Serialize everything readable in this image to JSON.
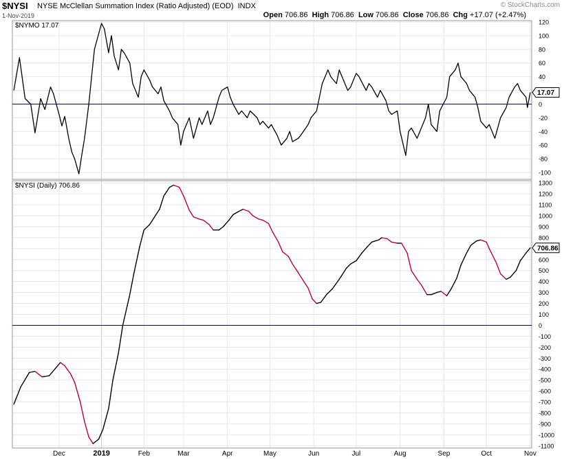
{
  "header": {
    "symbol": "$NYSI",
    "name": "NYSE McClellan Summation Index (Ratio Adjusted) (EOD)",
    "exchange": "INDX",
    "date": "1-Nov-2019",
    "watermark": "© StockCharts.com",
    "open_label": "Open",
    "open": "706.86",
    "high_label": "High",
    "high": "706.86",
    "low_label": "Low",
    "low": "706.86",
    "close_label": "Close",
    "close": "706.86",
    "chg_label": "Chg",
    "chg": "+17.07 (+2.47%)"
  },
  "chart_data": [
    {
      "type": "line",
      "label": "$NYMO 17.07",
      "last_value": "17.07",
      "ylim": [
        -110,
        122
      ],
      "yticks": [
        -100,
        -80,
        -60,
        -40,
        -20,
        0,
        20,
        40,
        60,
        80,
        100,
        120
      ],
      "reference_line": 0,
      "colors": {
        "line": "#000000",
        "zero": "#000080"
      },
      "series": [
        {
          "points": [
            [
              "2018-11-01",
              20
            ],
            [
              "2018-11-05",
              68
            ],
            [
              "2018-11-09",
              8
            ],
            [
              "2018-11-13",
              0
            ],
            [
              "2018-11-16",
              -42
            ],
            [
              "2018-11-20",
              8
            ],
            [
              "2018-11-23",
              -8
            ],
            [
              "2018-11-27",
              25
            ],
            [
              "2018-11-29",
              15
            ],
            [
              "2018-12-03",
              -15
            ],
            [
              "2018-12-05",
              -32
            ],
            [
              "2018-12-07",
              -18
            ],
            [
              "2018-12-10",
              -52
            ],
            [
              "2018-12-12",
              -70
            ],
            [
              "2018-12-14",
              -80
            ],
            [
              "2018-12-17",
              -102
            ],
            [
              "2018-12-19",
              -75
            ],
            [
              "2018-12-21",
              -50
            ],
            [
              "2018-12-24",
              0
            ],
            [
              "2018-12-26",
              40
            ],
            [
              "2018-12-28",
              80
            ],
            [
              "2019-01-02",
              118
            ],
            [
              "2019-01-04",
              110
            ],
            [
              "2019-01-07",
              75
            ],
            [
              "2019-01-09",
              100
            ],
            [
              "2019-01-11",
              70
            ],
            [
              "2019-01-14",
              50
            ],
            [
              "2019-01-16",
              80
            ],
            [
              "2019-01-18",
              75
            ],
            [
              "2019-01-22",
              60
            ],
            [
              "2019-01-24",
              30
            ],
            [
              "2019-01-28",
              10
            ],
            [
              "2019-01-30",
              40
            ],
            [
              "2019-02-01",
              50
            ],
            [
              "2019-02-05",
              35
            ],
            [
              "2019-02-07",
              25
            ],
            [
              "2019-02-11",
              15
            ],
            [
              "2019-02-13",
              25
            ],
            [
              "2019-02-15",
              5
            ],
            [
              "2019-02-19",
              -10
            ],
            [
              "2019-02-21",
              -20
            ],
            [
              "2019-02-25",
              -30
            ],
            [
              "2019-02-27",
              -60
            ],
            [
              "2019-03-01",
              -40
            ],
            [
              "2019-03-05",
              -20
            ],
            [
              "2019-03-08",
              -50
            ],
            [
              "2019-03-12",
              -20
            ],
            [
              "2019-03-14",
              -30
            ],
            [
              "2019-03-18",
              -10
            ],
            [
              "2019-03-20",
              -30
            ],
            [
              "2019-03-22",
              -20
            ],
            [
              "2019-03-26",
              10
            ],
            [
              "2019-03-28",
              20
            ],
            [
              "2019-04-01",
              25
            ],
            [
              "2019-04-03",
              10
            ],
            [
              "2019-04-05",
              0
            ],
            [
              "2019-04-09",
              -15
            ],
            [
              "2019-04-11",
              -10
            ],
            [
              "2019-04-15",
              -20
            ],
            [
              "2019-04-17",
              -10
            ],
            [
              "2019-04-22",
              -20
            ],
            [
              "2019-04-24",
              -30
            ],
            [
              "2019-04-26",
              -25
            ],
            [
              "2019-04-30",
              -35
            ],
            [
              "2019-05-02",
              -30
            ],
            [
              "2019-05-06",
              -45
            ],
            [
              "2019-05-09",
              -60
            ],
            [
              "2019-05-13",
              -50
            ],
            [
              "2019-05-15",
              -40
            ],
            [
              "2019-05-17",
              -55
            ],
            [
              "2019-05-21",
              -50
            ],
            [
              "2019-05-23",
              -45
            ],
            [
              "2019-05-28",
              -30
            ],
            [
              "2019-05-30",
              -20
            ],
            [
              "2019-06-03",
              -10
            ],
            [
              "2019-06-05",
              10
            ],
            [
              "2019-06-07",
              30
            ],
            [
              "2019-06-11",
              50
            ],
            [
              "2019-06-13",
              40
            ],
            [
              "2019-06-17",
              30
            ],
            [
              "2019-06-19",
              50
            ],
            [
              "2019-06-21",
              40
            ],
            [
              "2019-06-25",
              20
            ],
            [
              "2019-06-27",
              25
            ],
            [
              "2019-07-01",
              45
            ],
            [
              "2019-07-03",
              40
            ],
            [
              "2019-07-08",
              20
            ],
            [
              "2019-07-10",
              30
            ],
            [
              "2019-07-12",
              25
            ],
            [
              "2019-07-16",
              10
            ],
            [
              "2019-07-18",
              20
            ],
            [
              "2019-07-22",
              5
            ],
            [
              "2019-07-24",
              -10
            ],
            [
              "2019-07-26",
              -15
            ],
            [
              "2019-07-30",
              -10
            ],
            [
              "2019-08-01",
              -40
            ],
            [
              "2019-08-05",
              -75
            ],
            [
              "2019-08-07",
              -40
            ],
            [
              "2019-08-09",
              -35
            ],
            [
              "2019-08-13",
              -50
            ],
            [
              "2019-08-15",
              -40
            ],
            [
              "2019-08-19",
              -20
            ],
            [
              "2019-08-21",
              0
            ],
            [
              "2019-08-23",
              -30
            ],
            [
              "2019-08-27",
              -40
            ],
            [
              "2019-08-29",
              -10
            ],
            [
              "2019-09-03",
              10
            ],
            [
              "2019-09-05",
              40
            ],
            [
              "2019-09-09",
              50
            ],
            [
              "2019-09-11",
              60
            ],
            [
              "2019-09-13",
              40
            ],
            [
              "2019-09-17",
              30
            ],
            [
              "2019-09-19",
              20
            ],
            [
              "2019-09-23",
              10
            ],
            [
              "2019-09-25",
              -5
            ],
            [
              "2019-09-27",
              -25
            ],
            [
              "2019-10-01",
              -35
            ],
            [
              "2019-10-03",
              -30
            ],
            [
              "2019-10-07",
              -50
            ],
            [
              "2019-10-09",
              -35
            ],
            [
              "2019-10-11",
              -20
            ],
            [
              "2019-10-15",
              -5
            ],
            [
              "2019-10-17",
              10
            ],
            [
              "2019-10-21",
              25
            ],
            [
              "2019-10-23",
              30
            ],
            [
              "2019-10-25",
              20
            ],
            [
              "2019-10-29",
              10
            ],
            [
              "2019-10-30",
              -5
            ],
            [
              "2019-11-01",
              17.07
            ]
          ]
        }
      ]
    },
    {
      "type": "line",
      "label": "$NYSI (Daily) 706.86",
      "last_value": "706.86",
      "ylim": [
        -1120,
        1320
      ],
      "yticks": [
        -1100,
        -1000,
        -900,
        -800,
        -700,
        -600,
        -500,
        -400,
        -300,
        -200,
        -100,
        0,
        100,
        200,
        300,
        400,
        500,
        600,
        700,
        800,
        900,
        1000,
        1100,
        1200,
        1300
      ],
      "reference_line": 0,
      "colors": {
        "rising": "#000000",
        "falling": "#c0003c",
        "zero": "#000080"
      },
      "series": [
        {
          "points": [
            [
              "2018-11-01",
              -720
            ],
            [
              "2018-11-06",
              -560
            ],
            [
              "2018-11-12",
              -430
            ],
            [
              "2018-11-16",
              -420
            ],
            [
              "2018-11-21",
              -470
            ],
            [
              "2018-11-26",
              -460
            ],
            [
              "2018-11-30",
              -400
            ],
            [
              "2018-12-04",
              -340
            ],
            [
              "2018-12-07",
              -370
            ],
            [
              "2018-12-11",
              -440
            ],
            [
              "2018-12-14",
              -520
            ],
            [
              "2018-12-18",
              -700
            ],
            [
              "2018-12-21",
              -880
            ],
            [
              "2018-12-24",
              -1020
            ],
            [
              "2018-12-27",
              -1080
            ],
            [
              "2018-12-31",
              -1040
            ],
            [
              "2019-01-03",
              -950
            ],
            [
              "2019-01-07",
              -760
            ],
            [
              "2019-01-10",
              -500
            ],
            [
              "2019-01-14",
              -250
            ],
            [
              "2019-01-17",
              0
            ],
            [
              "2019-01-22",
              280
            ],
            [
              "2019-01-25",
              480
            ],
            [
              "2019-01-29",
              720
            ],
            [
              "2019-02-01",
              870
            ],
            [
              "2019-02-05",
              920
            ],
            [
              "2019-02-08",
              980
            ],
            [
              "2019-02-12",
              1060
            ],
            [
              "2019-02-15",
              1180
            ],
            [
              "2019-02-19",
              1260
            ],
            [
              "2019-02-22",
              1280
            ],
            [
              "2019-02-26",
              1260
            ],
            [
              "2019-03-01",
              1180
            ],
            [
              "2019-03-05",
              1050
            ],
            [
              "2019-03-08",
              990
            ],
            [
              "2019-03-12",
              970
            ],
            [
              "2019-03-15",
              960
            ],
            [
              "2019-03-19",
              920
            ],
            [
              "2019-03-22",
              870
            ],
            [
              "2019-03-26",
              870
            ],
            [
              "2019-03-29",
              900
            ],
            [
              "2019-04-02",
              960
            ],
            [
              "2019-04-05",
              1010
            ],
            [
              "2019-04-09",
              1040
            ],
            [
              "2019-04-12",
              1060
            ],
            [
              "2019-04-16",
              1040
            ],
            [
              "2019-04-19",
              1000
            ],
            [
              "2019-04-23",
              970
            ],
            [
              "2019-04-26",
              960
            ],
            [
              "2019-04-30",
              930
            ],
            [
              "2019-05-03",
              850
            ],
            [
              "2019-05-07",
              760
            ],
            [
              "2019-05-10",
              670
            ],
            [
              "2019-05-14",
              630
            ],
            [
              "2019-05-17",
              560
            ],
            [
              "2019-05-21",
              480
            ],
            [
              "2019-05-24",
              420
            ],
            [
              "2019-05-28",
              340
            ],
            [
              "2019-05-31",
              240
            ],
            [
              "2019-06-03",
              200
            ],
            [
              "2019-06-06",
              210
            ],
            [
              "2019-06-10",
              280
            ],
            [
              "2019-06-14",
              330
            ],
            [
              "2019-06-19",
              420
            ],
            [
              "2019-06-24",
              520
            ],
            [
              "2019-06-27",
              560
            ],
            [
              "2019-07-01",
              590
            ],
            [
              "2019-07-05",
              660
            ],
            [
              "2019-07-09",
              720
            ],
            [
              "2019-07-12",
              760
            ],
            [
              "2019-07-17",
              780
            ],
            [
              "2019-07-19",
              800
            ],
            [
              "2019-07-23",
              790
            ],
            [
              "2019-07-26",
              760
            ],
            [
              "2019-07-30",
              750
            ],
            [
              "2019-08-02",
              750
            ],
            [
              "2019-08-06",
              660
            ],
            [
              "2019-08-09",
              500
            ],
            [
              "2019-08-13",
              420
            ],
            [
              "2019-08-16",
              370
            ],
            [
              "2019-08-20",
              280
            ],
            [
              "2019-08-23",
              280
            ],
            [
              "2019-08-27",
              300
            ],
            [
              "2019-08-30",
              310
            ],
            [
              "2019-09-03",
              270
            ],
            [
              "2019-09-06",
              330
            ],
            [
              "2019-09-10",
              430
            ],
            [
              "2019-09-13",
              550
            ],
            [
              "2019-09-17",
              660
            ],
            [
              "2019-09-20",
              730
            ],
            [
              "2019-09-24",
              770
            ],
            [
              "2019-09-27",
              780
            ],
            [
              "2019-10-01",
              760
            ],
            [
              "2019-10-03",
              700
            ],
            [
              "2019-10-08",
              570
            ],
            [
              "2019-10-11",
              470
            ],
            [
              "2019-10-15",
              420
            ],
            [
              "2019-10-18",
              440
            ],
            [
              "2019-10-22",
              500
            ],
            [
              "2019-10-25",
              590
            ],
            [
              "2019-10-29",
              660
            ],
            [
              "2019-11-01",
              706.86
            ]
          ]
        }
      ]
    }
  ],
  "x_axis": {
    "start": "2018-10-31",
    "end": "2019-11-02",
    "ticks": [
      {
        "date": "2018-12-03",
        "label": "Dec"
      },
      {
        "date": "2019-01-02",
        "label": "2019",
        "bold": true
      },
      {
        "date": "2019-02-01",
        "label": "Feb"
      },
      {
        "date": "2019-03-01",
        "label": "Mar"
      },
      {
        "date": "2019-04-01",
        "label": "Apr"
      },
      {
        "date": "2019-05-01",
        "label": "May"
      },
      {
        "date": "2019-06-01",
        "label": "Jun"
      },
      {
        "date": "2019-07-01",
        "label": "Jul"
      },
      {
        "date": "2019-08-01",
        "label": "Aug"
      },
      {
        "date": "2019-09-01",
        "label": "Sep"
      },
      {
        "date": "2019-10-01",
        "label": "Oct"
      },
      {
        "date": "2019-11-01",
        "label": "Nov"
      }
    ]
  }
}
